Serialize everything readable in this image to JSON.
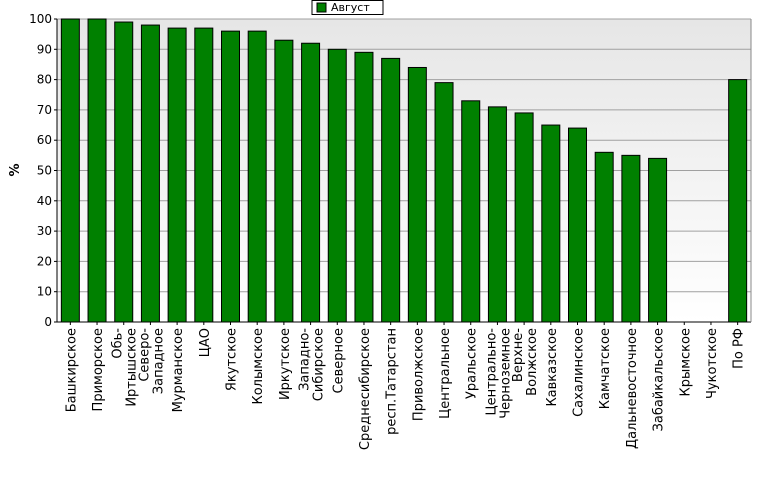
{
  "chart_data": {
    "type": "bar",
    "y_label": "%",
    "legend": {
      "position": "top"
    },
    "categories": [
      "Башкирское",
      "Приморское",
      "Обь-Иртышское",
      "Северо-Западное",
      "Мурманское",
      "ЦАО",
      "Якутское",
      "Колымское",
      "Иркутское",
      "Западно-Сибирское",
      "Северное",
      "Среднесибирское",
      "респ.Татарстан",
      "Приволжское",
      "Центральное",
      "Уральское",
      "Центрально-Черноземное",
      "Верхне-Волжское",
      "Кавказское",
      "Сахалинское",
      "Камчатское",
      "Дальневосточное",
      "Забайкальское",
      "Крымское",
      "Чукотское",
      "По РФ"
    ],
    "series": [
      {
        "name": "Август",
        "color": "#008000",
        "values": [
          100,
          100,
          99,
          98,
          97,
          97,
          96,
          96,
          93,
          92,
          90,
          89,
          87,
          84,
          79,
          73,
          71,
          69,
          65,
          64,
          56,
          55,
          54,
          null,
          null,
          80
        ]
      }
    ],
    "ylim": [
      0,
      100
    ],
    "yticks": [
      0,
      10,
      20,
      30,
      40,
      50,
      60,
      70,
      80,
      90,
      100
    ],
    "grid": true
  }
}
